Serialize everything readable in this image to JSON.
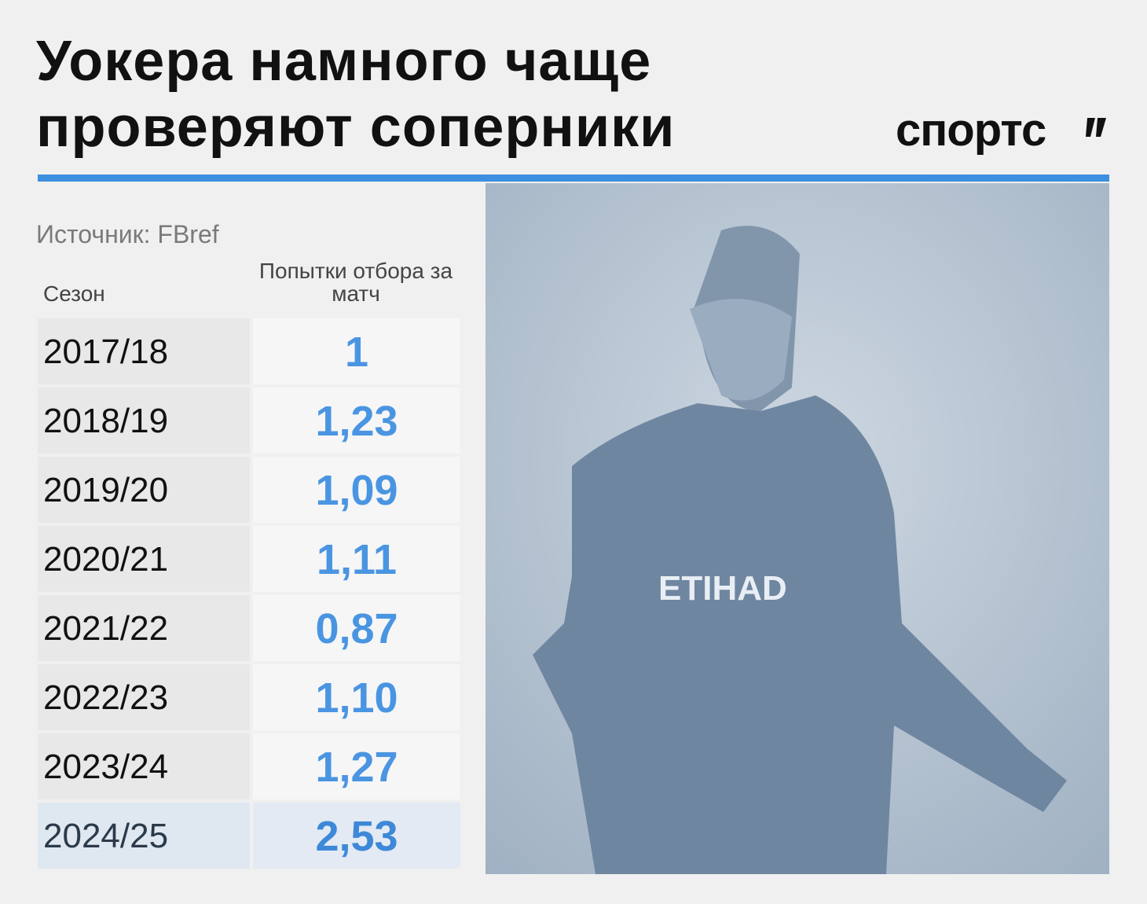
{
  "header": {
    "title_lines": [
      "Уокера намного чаще",
      "проверяют соперники"
    ],
    "logo": "спортс"
  },
  "source": "Источник: FBref",
  "table": {
    "columns": [
      "Сезон",
      "Попытки отбора за матч"
    ],
    "rows": [
      [
        "2017/18",
        "1"
      ],
      [
        "2018/19",
        "1,23"
      ],
      [
        "2019/20",
        "1,09"
      ],
      [
        "2020/21",
        "1,11"
      ],
      [
        "2021/22",
        "0,87"
      ],
      [
        "2022/23",
        "1,10"
      ],
      [
        "2023/24",
        "1,27"
      ],
      [
        "2024/25",
        "2,53"
      ]
    ]
  }
}
